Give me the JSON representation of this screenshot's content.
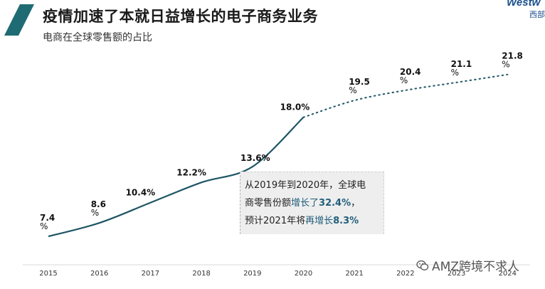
{
  "header": {
    "title": "疫情加速了本就日益增长的电子商务业务",
    "subtitle": "电商在全球零售额的占比",
    "brand": "Westw",
    "brand_sub": "西部"
  },
  "colors": {
    "accent": "#1e6b73",
    "line": "#1d5564",
    "dotted": "#1d5564",
    "highlight": "#1f5e7a"
  },
  "callout": {
    "line1": "从2019年到2020年，全球电",
    "line2_prefix": "商零售份额",
    "line2_highlight_text": "增长了",
    "line2_highlight_value": "32.4%",
    "line2_suffix": "，",
    "line3_prefix": "预计2021年将",
    "line3_highlight_text": "再增长",
    "line3_highlight_value": "8.3%"
  },
  "watermark": {
    "text": "AMZ跨境不求人",
    "icon": "wechat-icon"
  },
  "chart_data": {
    "type": "line",
    "title": "电商在全球零售额的占比",
    "xlabel": "",
    "ylabel": "",
    "ylim": [
      5,
      24
    ],
    "grid": false,
    "categories": [
      "2015",
      "2016",
      "2017",
      "2018",
      "2019",
      "2020",
      "2021",
      "2022",
      "2023",
      "2024"
    ],
    "series": [
      {
        "values": [
          7.4,
          8.6,
          10.4,
          12.2,
          13.6,
          18.0,
          19.5,
          20.4,
          21.1,
          21.8
        ],
        "labels": [
          "7.4\n%",
          "8.6\n%",
          "10.4%",
          "12.2%",
          "13.6%",
          "18.0%",
          "19.5\n%",
          "20.4\n%",
          "21.1\n%",
          "21.8\n%"
        ],
        "actual_through": "2020",
        "forecast_from": "2020"
      }
    ]
  }
}
